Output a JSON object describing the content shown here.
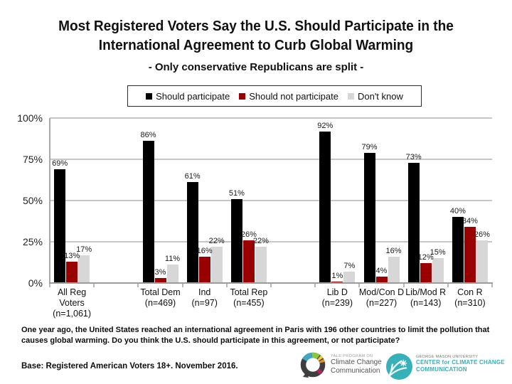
{
  "header": {
    "title": "Most Registered Voters Say the U.S. Should Participate in the International Agreement to Curb Global Warming",
    "subtitle": "- Only conservative Republicans are split -"
  },
  "legend": {
    "items": [
      {
        "key": "should-participate",
        "label": "Should participate",
        "color": "#000000"
      },
      {
        "key": "should-not-participate",
        "label": "Should not participate",
        "color": "#990000"
      },
      {
        "key": "dont-know",
        "label": "Don't know",
        "color": "#d7d7d7"
      }
    ]
  },
  "chart_data": {
    "type": "bar",
    "title": "Most Registered Voters Say the U.S. Should Participate in the International Agreement to Curb Global Warming",
    "xlabel": "",
    "ylabel": "",
    "ylim": [
      0,
      100
    ],
    "yticks": [
      0,
      25,
      50,
      75,
      100
    ],
    "grid": true,
    "legend_position": "top",
    "series_names": [
      "Should participate",
      "Should not participate",
      "Don't know"
    ],
    "series_keys": [
      "should-participate",
      "should-not-participate",
      "dont-know"
    ],
    "colors": [
      "#000000",
      "#990000",
      "#d7d7d7"
    ],
    "slots_total": 10,
    "groups": [
      {
        "name": "All Reg Voters",
        "n": "(n=1,061)",
        "slot": 0,
        "values": [
          69,
          13,
          17
        ]
      },
      {
        "name": "Total Dem",
        "n": "(n=469)",
        "slot": 2,
        "values": [
          86,
          3,
          11
        ]
      },
      {
        "name": "Ind",
        "n": "(n=97)",
        "slot": 3,
        "values": [
          61,
          16,
          22
        ]
      },
      {
        "name": "Total Rep",
        "n": "(n=455)",
        "slot": 4,
        "values": [
          51,
          26,
          22
        ]
      },
      {
        "name": "Lib D",
        "n": "(n=239)",
        "slot": 6,
        "values": [
          92,
          1,
          7
        ]
      },
      {
        "name": "Mod/Con D",
        "n": "(n=227)",
        "slot": 7,
        "values": [
          79,
          4,
          16
        ]
      },
      {
        "name": "Lib/Mod R",
        "n": "(n=143)",
        "slot": 8,
        "values": [
          73,
          12,
          15
        ]
      },
      {
        "name": "Con R",
        "n": "(n=310)",
        "slot": 9,
        "values": [
          40,
          34,
          26
        ]
      }
    ]
  },
  "footer": {
    "question": "One year ago, the United States reached an international agreement in Paris with 196 other countries to limit the pollution that causes global warming. Do you think the U.S. should participate in this agreement, or not participate?",
    "base": "Base: Registered American Voters 18+. November 2016."
  },
  "logos": {
    "yale": {
      "line1": "YALE PROGRAM ON",
      "line2": "Climate Change",
      "line3": "Communication"
    },
    "gmu": {
      "line1": "GEORGE MASON UNIVERSITY",
      "line2": "CENTER for CLIMATE CHANGE",
      "line3": "COMMUNICATION",
      "teal": "#35b1b9"
    }
  }
}
